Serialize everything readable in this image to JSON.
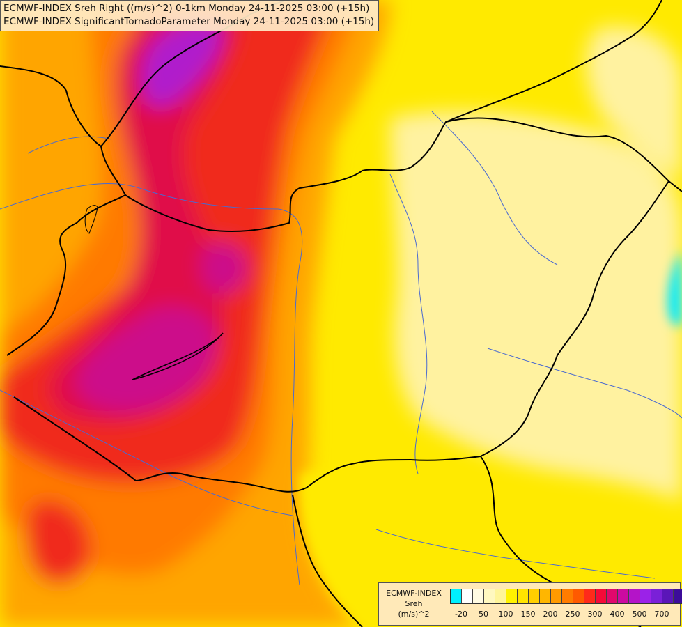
{
  "header": {
    "line1": "ECMWF-INDEX Sreh Right ((m/s)^2) 0-1km Monday 24-11-2025 03:00 (+15h)",
    "line2": "ECMWF-INDEX SignificantTornadoParameter Monday 24-11-2025 03:00 (+15h)"
  },
  "legend": {
    "title_line1": "ECMWF-INDEX",
    "title_line2": "Sreh",
    "title_line3": "(m/s)^2",
    "colors": [
      "#00f0ff",
      "#ffffff",
      "#fffbe3",
      "#fff8c0",
      "#fff59a",
      "#fff200",
      "#ffe400",
      "#ffcf00",
      "#ffb600",
      "#ff9a00",
      "#ff7c00",
      "#ff5a00",
      "#ff2a1a",
      "#f50a38",
      "#e0086c",
      "#cc0aa0",
      "#b414c8",
      "#9b22e8",
      "#7a20d8",
      "#5a16b8",
      "#3c0c9a",
      "#1a0a86"
    ],
    "ticks": [
      "-20",
      "50",
      "100",
      "150",
      "200",
      "250",
      "300",
      "400",
      "500",
      "700"
    ]
  },
  "map": {
    "field_colors": {
      "yellow": "#ffea00",
      "pale_yellow": "#fff2a0",
      "light_yellow": "#fff59a",
      "orange": "#ffa500",
      "dark_orange": "#ff7a00",
      "red": "#f02a1c",
      "crimson": "#e00d4a",
      "magenta": "#cc0a8a",
      "purple": "#b01acc",
      "cyan": "#00eaff"
    },
    "border_color": "#000000",
    "river_color": "#4a6ad0"
  }
}
